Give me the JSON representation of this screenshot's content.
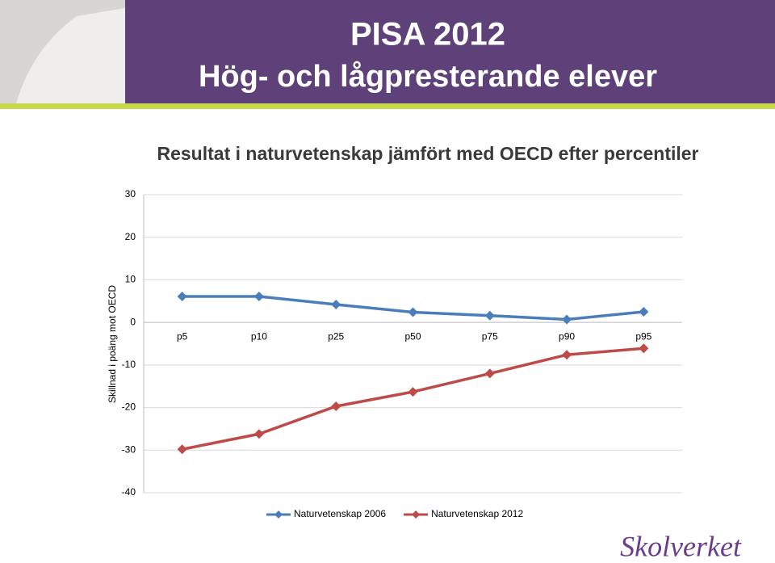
{
  "header": {
    "title": "PISA 2012",
    "subtitle": "Hög- och lågpresterande elever"
  },
  "logo": "Skolverket",
  "chart_data": {
    "type": "line",
    "title": "Resultat i naturvetenskap jämfört med OECD efter percentiler",
    "y_label": "Skillnad i poäng mot OECD",
    "categories": [
      "p5",
      "p10",
      "p25",
      "p50",
      "p75",
      "p90",
      "p95"
    ],
    "series": [
      {
        "name": "Naturvetenskap 2006",
        "color": "#4a7ebb",
        "values": [
          6.1,
          6.1,
          4.2,
          2.4,
          1.6,
          0.7,
          2.5
        ]
      },
      {
        "name": "Naturvetenskap 2012",
        "color": "#be4b48",
        "values": [
          -29.8,
          -26.2,
          -19.7,
          -16.3,
          -12.0,
          -7.6,
          -6.1
        ]
      }
    ],
    "ylim": [
      -40,
      30
    ],
    "yticks": [
      30,
      20,
      10,
      0,
      -10,
      -20,
      -30,
      -40
    ],
    "grid": true,
    "legend": "bottom"
  }
}
